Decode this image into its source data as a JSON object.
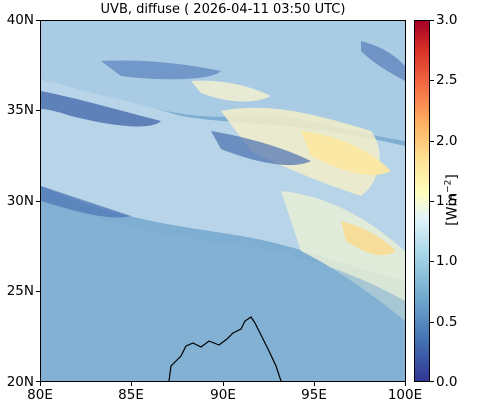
{
  "title": "UVB, diffuse ( 2026-04-11 03:50 UTC)",
  "x_ticks": [
    "80E",
    "85E",
    "90E",
    "95E",
    "100E"
  ],
  "y_ticks": [
    "40N",
    "35N",
    "30N",
    "25N",
    "20N"
  ],
  "colorbar": {
    "ticks": [
      "3.0",
      "2.5",
      "2.0",
      "1.5",
      "1.0",
      "0.5",
      "0.0"
    ],
    "unit_base": "[Wm",
    "unit_exp": "−2",
    "unit_close": "]",
    "range": [
      0.0,
      3.0
    ],
    "colormap": "RdYlBu_r"
  },
  "map": {
    "lon_range": [
      80,
      100
    ],
    "lat_range": [
      20,
      40
    ],
    "coastline": "Bay of Bengal / Bangladesh coast near 88–93E, 20–23N",
    "colors": {
      "ocean_plains": "#7eaed2",
      "plateau": "#a9cbe3",
      "low_values": "#3f66a8",
      "high_values": "#fde8a0"
    }
  }
}
